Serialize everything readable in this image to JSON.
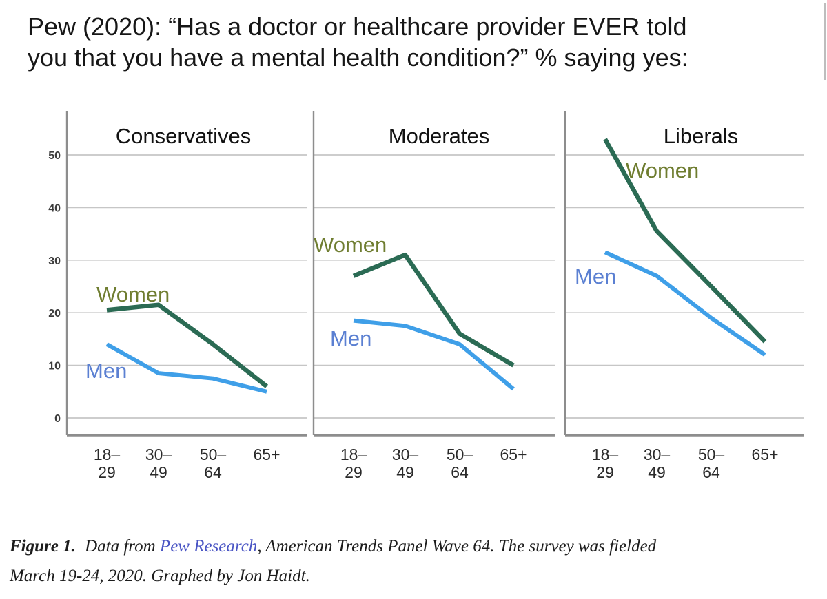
{
  "header": {
    "title_line1": "Pew (2020): “Has a doctor or healthcare provider EVER told",
    "title_line2": "you that you have a mental health condition?” % saying yes:"
  },
  "chart_data": {
    "type": "line",
    "categories": [
      [
        "18–",
        "29"
      ],
      [
        "30–",
        "49"
      ],
      [
        "50–",
        "64"
      ],
      [
        "65+",
        ""
      ]
    ],
    "y_ticks": [
      0,
      10,
      20,
      30,
      40,
      50
    ],
    "ylim": [
      0,
      55
    ],
    "grid": "horizontal",
    "legend": "inline labels beside lines",
    "panels": [
      {
        "title": "Conservatives",
        "series": [
          {
            "name": "Women",
            "values": [
              20.5,
              21.5,
              14,
              6
            ]
          },
          {
            "name": "Men",
            "values": [
              14,
              8.5,
              7.5,
              5
            ]
          }
        ]
      },
      {
        "title": "Moderates",
        "series": [
          {
            "name": "Women",
            "values": [
              27,
              31,
              16,
              10
            ]
          },
          {
            "name": "Men",
            "values": [
              18.5,
              17.5,
              14,
              5.5
            ]
          }
        ]
      },
      {
        "title": "Liberals",
        "series": [
          {
            "name": "Women",
            "values": [
              53,
              35.5,
              25,
              14.5
            ]
          },
          {
            "name": "Men",
            "values": [
              31.5,
              27,
              19,
              12
            ]
          }
        ]
      }
    ],
    "colors": {
      "women_line": "#2b6b54",
      "women_label": "#6f7d30",
      "men_line": "#3f9fe8",
      "men_label": "#5b80d2",
      "grid": "#c6c6c6",
      "axis": "#8d8d8d",
      "panel_title_text": "#111111",
      "tick_text": "#3c3c3c"
    }
  },
  "caption": {
    "figure_label": "Figure 1.",
    "pre_link": "Data from ",
    "link_text": "Pew Research",
    "post_link": ", American Trends Panel Wave 64. The survey was fielded",
    "line2": "March 19-24, 2020. Graphed by Jon Haidt.",
    "link_color": "#4a55c4"
  }
}
